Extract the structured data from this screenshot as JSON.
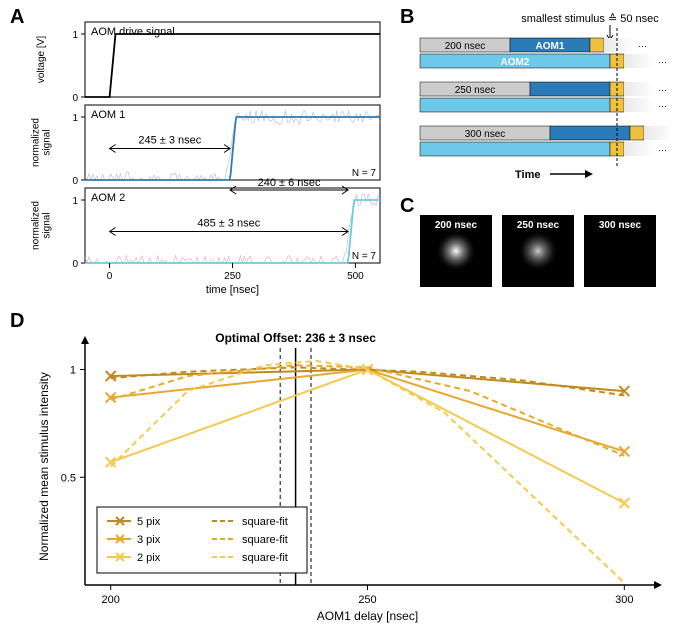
{
  "panels": {
    "A": {
      "label": "A",
      "xlabel": "time [nsec]",
      "xlim": [
        -50,
        550
      ],
      "xticks": [
        0,
        250,
        500
      ],
      "subplots": [
        {
          "title": "AOM drive signal",
          "ylabel": "voltage [V]",
          "ylim": [
            0,
            1
          ],
          "yticks": [
            0,
            1
          ],
          "line_color": "#000000",
          "rise_at": 0
        },
        {
          "title": "AOM 1",
          "ylabel": "normalized\nsignal",
          "ylim": [
            0,
            1
          ],
          "yticks": [
            0,
            1
          ],
          "line_color": "#2b7bb9",
          "noise_color": "#999999",
          "rise_at": 245,
          "annotation": "245 ± 3 nsec",
          "annotation2": "240 ± 6 nsec",
          "n_label": "N = 7"
        },
        {
          "title": "AOM 2",
          "ylabel": "normalized\nsignal",
          "ylim": [
            0,
            1
          ],
          "yticks": [
            0,
            1
          ],
          "line_color": "#6ec8e8",
          "noise_color": "#999999",
          "rise_at": 485,
          "annotation": "485 ± 3 nsec",
          "n_label": "N = 7"
        }
      ]
    },
    "B": {
      "label": "B",
      "top_label": "smallest stimulus ≙ 50 nsec",
      "xlabel": "Time",
      "colors": {
        "gray": "#cccccc",
        "aom1": "#2b7bb9",
        "aom2": "#6ec8e8",
        "yellow": "#f0c040",
        "fade": "#e8e8e8"
      },
      "rows": [
        {
          "gray_label": "200 nsec",
          "gray_w": 90,
          "aom1_label": "AOM1",
          "aom2_label": "AOM2",
          "yellow_offset": 170,
          "aom2_yellow_offset": 190
        },
        {
          "gray_label": "250 nsec",
          "gray_w": 110,
          "aom1_label": "",
          "aom2_label": "",
          "yellow_offset": 190,
          "aom2_yellow_offset": 190
        },
        {
          "gray_label": "300 nsec",
          "gray_w": 130,
          "aom1_label": "",
          "aom2_label": "",
          "yellow_offset": 210,
          "aom2_yellow_offset": 190
        }
      ]
    },
    "C": {
      "label": "C",
      "images": [
        {
          "label": "200 nsec",
          "intensity": 1.0
        },
        {
          "label": "250 nsec",
          "intensity": 0.8
        },
        {
          "label": "300 nsec",
          "intensity": 0.0
        }
      ]
    },
    "D": {
      "label": "D",
      "title": "Optimal Offset: 236 ± 3 nsec",
      "xlabel": "AOM1 delay [nsec]",
      "ylabel": "Normalized mean stimulus intensity",
      "xlim": [
        195,
        305
      ],
      "ylim": [
        0,
        1.1
      ],
      "xticks": [
        200,
        250,
        300
      ],
      "yticks": [
        0.5,
        1
      ],
      "optimal": 236,
      "optimal_err": 3,
      "colors": {
        "5pix": "#c08a1e",
        "3pix": "#e6a82e",
        "2pix": "#f4c94c"
      },
      "series": [
        {
          "name": "5 pix",
          "color": "#c08a1e",
          "style": "solid",
          "marker": "x",
          "pts": [
            [
              200,
              0.97
            ],
            [
              250,
              1.0
            ],
            [
              300,
              0.9
            ]
          ]
        },
        {
          "name": "3 pix",
          "color": "#e6a82e",
          "style": "solid",
          "marker": "x",
          "pts": [
            [
              200,
              0.87
            ],
            [
              250,
              1.0
            ],
            [
              300,
              0.62
            ]
          ]
        },
        {
          "name": "2 pix",
          "color": "#f4c94c",
          "style": "solid",
          "marker": "x",
          "pts": [
            [
              200,
              0.57
            ],
            [
              250,
              1.0
            ],
            [
              300,
              0.38
            ]
          ]
        },
        {
          "name": "square-fit",
          "color": "#c08a1e",
          "style": "dash",
          "pts": [
            [
              200,
              0.96
            ],
            [
              215,
              0.99
            ],
            [
              236,
              1.01
            ],
            [
              260,
              0.99
            ],
            [
              280,
              0.95
            ],
            [
              300,
              0.88
            ]
          ]
        },
        {
          "name": "square-fit",
          "color": "#e6a82e",
          "style": "dash",
          "pts": [
            [
              200,
              0.86
            ],
            [
              215,
              0.97
            ],
            [
              236,
              1.02
            ],
            [
              250,
              1.01
            ],
            [
              270,
              0.9
            ],
            [
              300,
              0.6
            ]
          ]
        },
        {
          "name": "square-fit",
          "color": "#f4c94c",
          "style": "dash",
          "pts": [
            [
              200,
              0.55
            ],
            [
              215,
              0.9
            ],
            [
              230,
              1.02
            ],
            [
              240,
              1.04
            ],
            [
              250,
              1.0
            ],
            [
              265,
              0.8
            ],
            [
              300,
              0.01
            ]
          ]
        }
      ],
      "legend": [
        {
          "marker": "x",
          "color": "#c08a1e",
          "label": "5 pix"
        },
        {
          "marker": "dash",
          "color": "#c08a1e",
          "label": "square-fit"
        },
        {
          "marker": "x",
          "color": "#e6a82e",
          "label": "3 pix"
        },
        {
          "marker": "dash",
          "color": "#e6a82e",
          "label": "square-fit"
        },
        {
          "marker": "x",
          "color": "#f4c94c",
          "label": "2 pix"
        },
        {
          "marker": "dash",
          "color": "#f4c94c",
          "label": "square-fit"
        }
      ]
    }
  }
}
